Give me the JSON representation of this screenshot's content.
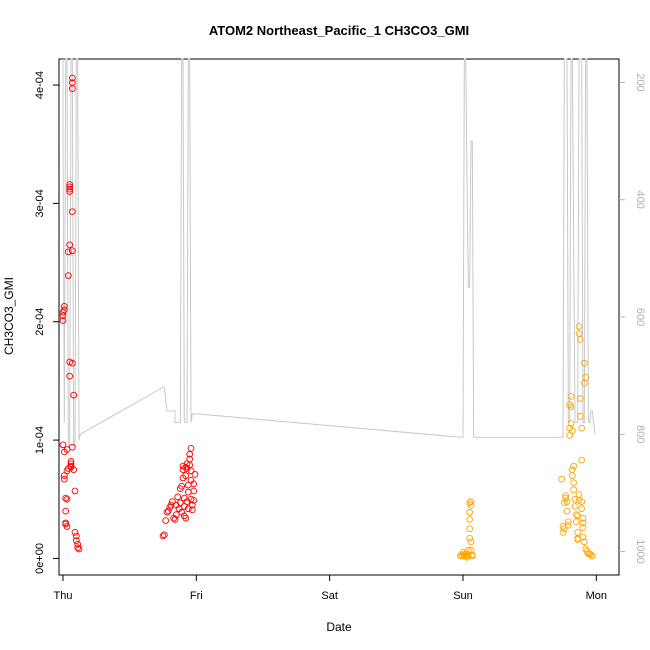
{
  "chart_data": {
    "type": "scatter",
    "title": "ATOM2 Northeast_Pacific_1 CH3CO3_GMI",
    "xlabel": "Date",
    "ylabel": "CH3CO3_GMI",
    "x_ticks": [
      "Thu",
      "Fri",
      "Sat",
      "Sun",
      "Mon"
    ],
    "xlim": [
      -0.03,
      4.17
    ],
    "ylim": [
      -1.4e-05,
      0.000422
    ],
    "y_ticks": [
      {
        "value": 0,
        "label": "0e+00"
      },
      {
        "value": 0.0001,
        "label": "1e-04"
      },
      {
        "value": 0.0002,
        "label": "2e-04"
      },
      {
        "value": 0.0003,
        "label": "3e-04"
      },
      {
        "value": 0.0004,
        "label": "4e-04"
      }
    ],
    "y2lim": [
      1040,
      160
    ],
    "y2_ticks": [
      {
        "value": 200,
        "label": "200"
      },
      {
        "value": 400,
        "label": "400"
      },
      {
        "value": 600,
        "label": "600"
      },
      {
        "value": 800,
        "label": "800"
      },
      {
        "value": 1000,
        "label": "1000"
      }
    ],
    "grid": false,
    "series": [
      {
        "color": "#ff0000",
        "marker": "open-circle",
        "points": [
          [
            0.0,
            0.000201
          ],
          [
            0.0,
            0.000205
          ],
          [
            0.0,
            0.000208
          ],
          [
            0.01,
            0.00021
          ],
          [
            0.01,
            0.000213
          ],
          [
            0.0,
            9.6e-05
          ],
          [
            0.01,
            9e-05
          ],
          [
            0.01,
            7e-05
          ],
          [
            0.01,
            6.7e-05
          ],
          [
            0.02,
            5.1e-05
          ],
          [
            0.02,
            4e-05
          ],
          [
            0.02,
            3e-05
          ],
          [
            0.03,
            2.7e-05
          ],
          [
            0.02,
            2.9e-05
          ],
          [
            0.03,
            5e-05
          ],
          [
            0.03,
            7.4e-05
          ],
          [
            0.03,
            9.2e-05
          ],
          [
            0.04,
            7.6e-05
          ],
          [
            0.04,
            0.000239
          ],
          [
            0.04,
            0.000259
          ],
          [
            0.05,
            0.000265
          ],
          [
            0.05,
            0.000312
          ],
          [
            0.05,
            0.000316
          ],
          [
            0.05,
            0.000314
          ],
          [
            0.05,
            0.00031
          ],
          [
            0.05,
            0.000166
          ],
          [
            0.05,
            0.000154
          ],
          [
            0.06,
            7.8e-05
          ],
          [
            0.06,
            7.7e-05
          ],
          [
            0.06,
            8e-05
          ],
          [
            0.06,
            8.2e-05
          ],
          [
            0.07,
            9.4e-05
          ],
          [
            0.07,
            0.000165
          ],
          [
            0.07,
            0.00026
          ],
          [
            0.07,
            0.000293
          ],
          [
            0.07,
            0.000397
          ],
          [
            0.07,
            0.000402
          ],
          [
            0.07,
            0.000406
          ],
          [
            0.08,
            0.000138
          ],
          [
            0.08,
            7.5e-05
          ],
          [
            0.09,
            5.7e-05
          ],
          [
            0.09,
            2.2e-05
          ],
          [
            0.1,
            1.9e-05
          ],
          [
            0.1,
            1.5e-05
          ],
          [
            0.11,
            1.2e-05
          ],
          [
            0.11,
            9e-06
          ],
          [
            0.12,
            8e-06
          ],
          [
            0.75,
            1.9e-05
          ],
          [
            0.76,
            2e-05
          ],
          [
            0.77,
            3.2e-05
          ],
          [
            0.78,
            3.9e-05
          ],
          [
            0.79,
            4e-05
          ],
          [
            0.8,
            4.3e-05
          ],
          [
            0.81,
            4.5e-05
          ],
          [
            0.82,
            4.8e-05
          ],
          [
            0.83,
            3.4e-05
          ],
          [
            0.84,
            3.3e-05
          ],
          [
            0.85,
            3.7e-05
          ],
          [
            0.85,
            4.5e-05
          ],
          [
            0.86,
            5.2e-05
          ],
          [
            0.87,
            4.2e-05
          ],
          [
            0.88,
            5.9e-05
          ],
          [
            0.88,
            4.7e-05
          ],
          [
            0.89,
            3.9e-05
          ],
          [
            0.89,
            6.1e-05
          ],
          [
            0.9,
            6.8e-05
          ],
          [
            0.9,
            7.5e-05
          ],
          [
            0.9,
            7.8e-05
          ],
          [
            0.91,
            5.1e-05
          ],
          [
            0.91,
            4.4e-05
          ],
          [
            0.91,
            3.6e-05
          ],
          [
            0.92,
            3.4e-05
          ],
          [
            0.92,
            7e-05
          ],
          [
            0.92,
            7.7e-05
          ],
          [
            0.93,
            7.6e-05
          ],
          [
            0.93,
            8e-05
          ],
          [
            0.93,
            4.8e-05
          ],
          [
            0.94,
            4.2e-05
          ],
          [
            0.94,
            5.6e-05
          ],
          [
            0.94,
            6.2e-05
          ],
          [
            0.95,
            7.9e-05
          ],
          [
            0.95,
            8.4e-05
          ],
          [
            0.95,
            8.8e-05
          ],
          [
            0.96,
            9.3e-05
          ],
          [
            0.96,
            7.4e-05
          ],
          [
            0.96,
            6.6e-05
          ],
          [
            0.96,
            5e-05
          ],
          [
            0.97,
            4.1e-05
          ],
          [
            0.97,
            4.5e-05
          ],
          [
            0.98,
            4.9e-05
          ],
          [
            0.98,
            5.7e-05
          ],
          [
            0.98,
            6.3e-05
          ],
          [
            0.99,
            7.1e-05
          ]
        ]
      },
      {
        "color": "#ffa500",
        "marker": "open-circle",
        "points": [
          [
            2.98,
            2e-06
          ],
          [
            2.99,
            3e-06
          ],
          [
            3.0,
            5e-06
          ],
          [
            3.0,
            2e-06
          ],
          [
            3.01,
            3e-06
          ],
          [
            3.02,
            2e-06
          ],
          [
            3.02,
            4e-06
          ],
          [
            3.03,
            3e-06
          ],
          [
            3.03,
            1e-06
          ],
          [
            3.04,
            2e-06
          ],
          [
            3.04,
            7e-06
          ],
          [
            3.05,
            1.7e-05
          ],
          [
            3.05,
            2.5e-05
          ],
          [
            3.05,
            3.3e-05
          ],
          [
            3.05,
            3.9e-05
          ],
          [
            3.05,
            4.7e-05
          ],
          [
            3.06,
            4.8e-05
          ],
          [
            3.06,
            4.5e-05
          ],
          [
            3.06,
            1.4e-05
          ],
          [
            3.06,
            7e-06
          ],
          [
            3.07,
            3e-06
          ],
          [
            3.07,
            2e-06
          ],
          [
            3.74,
            6.7e-05
          ],
          [
            3.75,
            2.7e-05
          ],
          [
            3.75,
            2.2e-05
          ],
          [
            3.76,
            2.5e-05
          ],
          [
            3.76,
            4.7e-05
          ],
          [
            3.77,
            5.1e-05
          ],
          [
            3.77,
            5.3e-05
          ],
          [
            3.78,
            4.8e-05
          ],
          [
            3.78,
            4e-05
          ],
          [
            3.79,
            3.1e-05
          ],
          [
            3.79,
            2.8e-05
          ],
          [
            3.8,
            0.000104
          ],
          [
            3.8,
            0.00011
          ],
          [
            3.8,
            0.00013
          ],
          [
            3.81,
            0.000137
          ],
          [
            3.81,
            0.000128
          ],
          [
            3.81,
            0.000114
          ],
          [
            3.82,
            0.000108
          ],
          [
            3.82,
            7.5e-05
          ],
          [
            3.82,
            7e-05
          ],
          [
            3.83,
            7.8e-05
          ],
          [
            3.83,
            6.4e-05
          ],
          [
            3.83,
            5.8e-05
          ],
          [
            3.84,
            5e-05
          ],
          [
            3.84,
            4.4e-05
          ],
          [
            3.85,
            3.7e-05
          ],
          [
            3.85,
            3.1e-05
          ],
          [
            3.86,
            1.7e-05
          ],
          [
            3.86,
            1.6e-05
          ],
          [
            3.86,
            2.2e-05
          ],
          [
            3.86,
            3.6e-05
          ],
          [
            3.87,
            4.9e-05
          ],
          [
            3.87,
            5.4e-05
          ],
          [
            3.87,
            0.00019
          ],
          [
            3.87,
            0.000196
          ],
          [
            3.88,
            0.000185
          ],
          [
            3.88,
            0.000135
          ],
          [
            3.88,
            0.00012
          ],
          [
            3.89,
            0.00011
          ],
          [
            3.89,
            8.3e-05
          ],
          [
            3.89,
            4.8e-05
          ],
          [
            3.89,
            4.2e-05
          ],
          [
            3.9,
            3.4e-05
          ],
          [
            3.9,
            3e-05
          ],
          [
            3.9,
            2.6e-05
          ],
          [
            3.9,
            1.8e-05
          ],
          [
            3.91,
            1.4e-05
          ],
          [
            3.91,
            0.000165
          ],
          [
            3.91,
            0.000148
          ],
          [
            3.92,
            0.000153
          ],
          [
            3.92,
            8e-06
          ],
          [
            3.93,
            6e-06
          ],
          [
            3.94,
            4e-06
          ],
          [
            3.95,
            4e-06
          ],
          [
            3.96,
            3e-06
          ],
          [
            3.97,
            2e-06
          ]
        ]
      }
    ],
    "line_series": {
      "color": "#c8c8c8",
      "axis": "right",
      "points": [
        [
          0.0,
          160
        ],
        [
          0.0,
          300
        ],
        [
          0.01,
          780
        ],
        [
          0.01,
          780
        ],
        [
          0.02,
          160
        ],
        [
          0.03,
          160
        ],
        [
          0.04,
          820
        ],
        [
          0.05,
          820
        ],
        [
          0.06,
          160
        ],
        [
          0.07,
          160
        ],
        [
          0.08,
          820
        ],
        [
          0.09,
          820
        ],
        [
          0.1,
          160
        ],
        [
          0.11,
          160
        ],
        [
          0.12,
          810
        ],
        [
          0.13,
          800
        ],
        [
          0.75,
          720
        ],
        [
          0.76,
          720
        ],
        [
          0.77,
          740
        ],
        [
          0.78,
          760
        ],
        [
          0.84,
          760
        ],
        [
          0.84,
          780
        ],
        [
          0.85,
          780
        ],
        [
          0.88,
          780
        ],
        [
          0.89,
          160
        ],
        [
          0.9,
          160
        ],
        [
          0.91,
          780
        ],
        [
          0.93,
          780
        ],
        [
          0.94,
          160
        ],
        [
          0.95,
          160
        ],
        [
          0.96,
          780
        ],
        [
          0.97,
          765
        ],
        [
          0.99,
          765
        ],
        [
          2.98,
          805
        ],
        [
          3.0,
          805
        ],
        [
          3.01,
          160
        ],
        [
          3.02,
          160
        ],
        [
          3.04,
          550
        ],
        [
          3.05,
          550
        ],
        [
          3.06,
          300
        ],
        [
          3.07,
          300
        ],
        [
          3.08,
          805
        ],
        [
          3.75,
          805
        ],
        [
          3.76,
          160
        ],
        [
          3.78,
          160
        ],
        [
          3.79,
          780
        ],
        [
          3.8,
          780
        ],
        [
          3.8,
          780
        ],
        [
          3.81,
          160
        ],
        [
          3.82,
          160
        ],
        [
          3.84,
          780
        ],
        [
          3.86,
          780
        ],
        [
          3.87,
          160
        ],
        [
          3.89,
          160
        ],
        [
          3.9,
          780
        ],
        [
          3.91,
          780
        ],
        [
          3.92,
          160
        ],
        [
          3.93,
          160
        ],
        [
          3.94,
          780
        ],
        [
          3.95,
          780
        ],
        [
          3.96,
          760
        ],
        [
          3.97,
          760
        ],
        [
          3.99,
          800
        ]
      ]
    }
  }
}
